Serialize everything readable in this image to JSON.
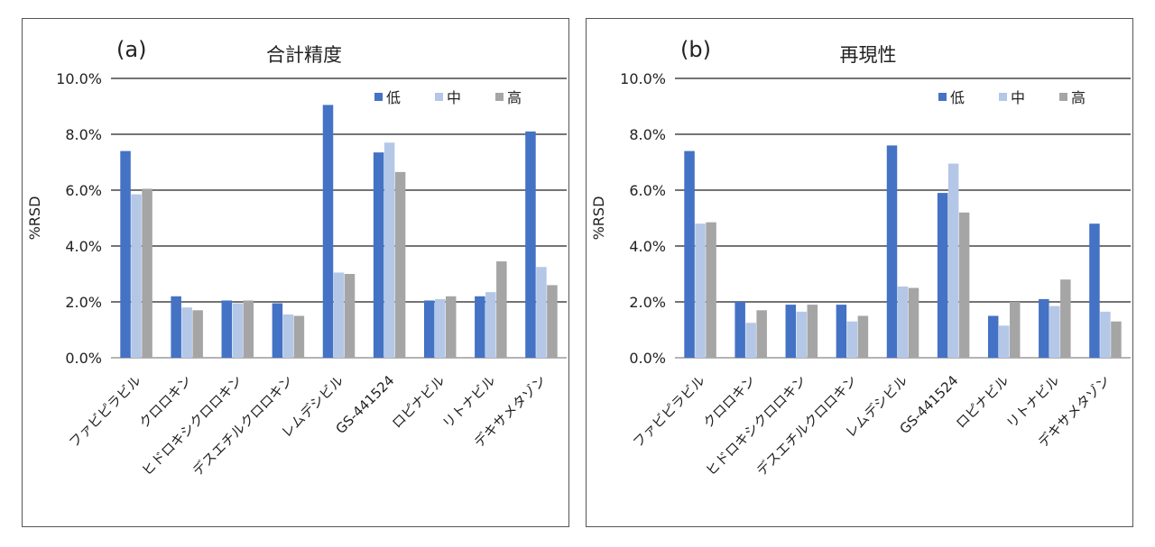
{
  "chart_data": [
    {
      "type": "bar",
      "panel_label": "(a)",
      "title": "合計精度",
      "ylabel": "%RSD",
      "xlabel": "",
      "ylim": [
        0,
        10.0
      ],
      "yticks": [
        "0.0%",
        "2.0%",
        "4.0%",
        "6.0%",
        "8.0%",
        "10.0%"
      ],
      "grid": true,
      "legend_position": "top-right",
      "categories": [
        "ファビピラビル",
        "クロロキン",
        "ヒドロキシクロロキン",
        "デスエチルクロロキン",
        "レムデシビル",
        "GS-441524",
        "ロピナビル",
        "リトナビル",
        "デキサメタゾン"
      ],
      "series": [
        {
          "name": "低",
          "color": "#4472c4",
          "values": [
            7.4,
            2.2,
            2.05,
            1.95,
            9.05,
            7.35,
            2.05,
            2.2,
            8.1
          ]
        },
        {
          "name": "中",
          "color": "#b4c7e7",
          "values": [
            5.85,
            1.8,
            1.95,
            1.55,
            3.05,
            7.7,
            2.1,
            2.35,
            3.25
          ]
        },
        {
          "name": "高",
          "color": "#a5a5a5",
          "values": [
            6.05,
            1.7,
            2.05,
            1.5,
            3.0,
            6.65,
            2.2,
            3.45,
            2.6
          ]
        }
      ]
    },
    {
      "type": "bar",
      "panel_label": "(b)",
      "title": "再現性",
      "ylabel": "%RSD",
      "xlabel": "",
      "ylim": [
        0,
        10.0
      ],
      "yticks": [
        "0.0%",
        "2.0%",
        "4.0%",
        "6.0%",
        "8.0%",
        "10.0%"
      ],
      "grid": true,
      "legend_position": "top-right",
      "categories": [
        "ファビピラビル",
        "クロロキン",
        "ヒドロキシクロロキン",
        "デスエチルクロロキン",
        "レムデシビル",
        "GS-441524",
        "ロピナビル",
        "リトナビル",
        "デキサメタゾン"
      ],
      "series": [
        {
          "name": "低",
          "color": "#4472c4",
          "values": [
            7.4,
            2.0,
            1.9,
            1.9,
            7.6,
            5.9,
            1.5,
            2.1,
            4.8
          ]
        },
        {
          "name": "中",
          "color": "#b4c7e7",
          "values": [
            4.8,
            1.25,
            1.65,
            1.3,
            2.55,
            6.95,
            1.15,
            1.85,
            1.65
          ]
        },
        {
          "name": "高",
          "color": "#a5a5a5",
          "values": [
            4.85,
            1.7,
            1.9,
            1.5,
            2.5,
            5.2,
            2.0,
            2.8,
            1.3
          ]
        }
      ]
    }
  ]
}
